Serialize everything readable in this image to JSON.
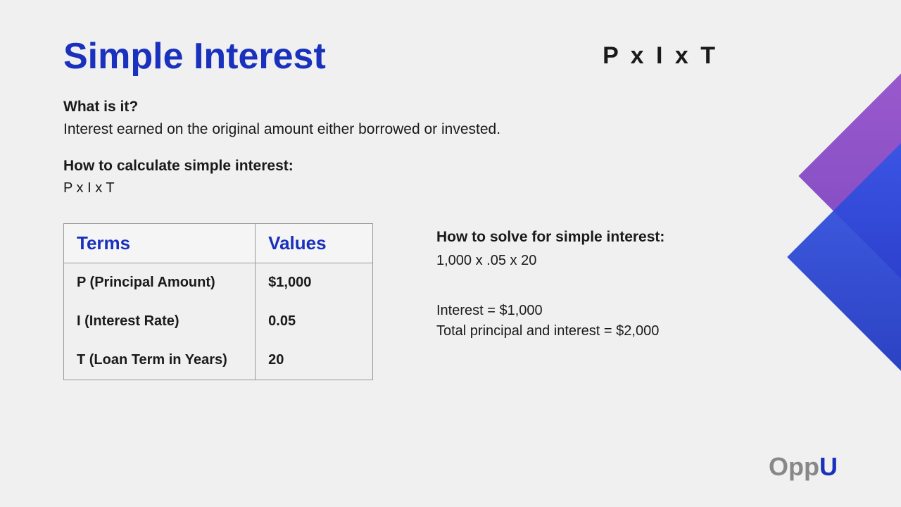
{
  "title": "Simple Interest",
  "formula_header": "P x I x T",
  "sections": {
    "what_is_it": {
      "heading": "What is it?",
      "text": "Interest earned on the original amount either borrowed or invested."
    },
    "how_to_calculate": {
      "heading": "How to calculate simple interest:",
      "formula": "P x I x T"
    },
    "how_to_solve": {
      "heading": "How to solve for simple interest:",
      "formula": "1,000 x .05 x 20",
      "result_interest": "Interest = $1,000",
      "result_total": "Total principal and interest = $2,000"
    }
  },
  "table": {
    "columns": [
      "Terms",
      "Values"
    ],
    "rows": [
      [
        "P (Principal Amount)",
        "$1,000"
      ],
      [
        "I (Interest Rate)",
        "0.05"
      ],
      [
        "T (Loan Term in Years)",
        "20"
      ]
    ]
  },
  "logo": {
    "part1": "Opp",
    "part2": "U"
  },
  "colors": {
    "title_blue": "#1931bd",
    "text_dark": "#1a1a1a",
    "background": "#f0f0f0",
    "diamond_purple_start": "#8b3fc7",
    "diamond_purple_end": "#6a2db8",
    "diamond_blue_start": "#3656e8",
    "diamond_blue_end": "#1931bd",
    "logo_gray": "#888888",
    "table_border": "#999999",
    "table_header_bg": "#f5f5f5"
  }
}
